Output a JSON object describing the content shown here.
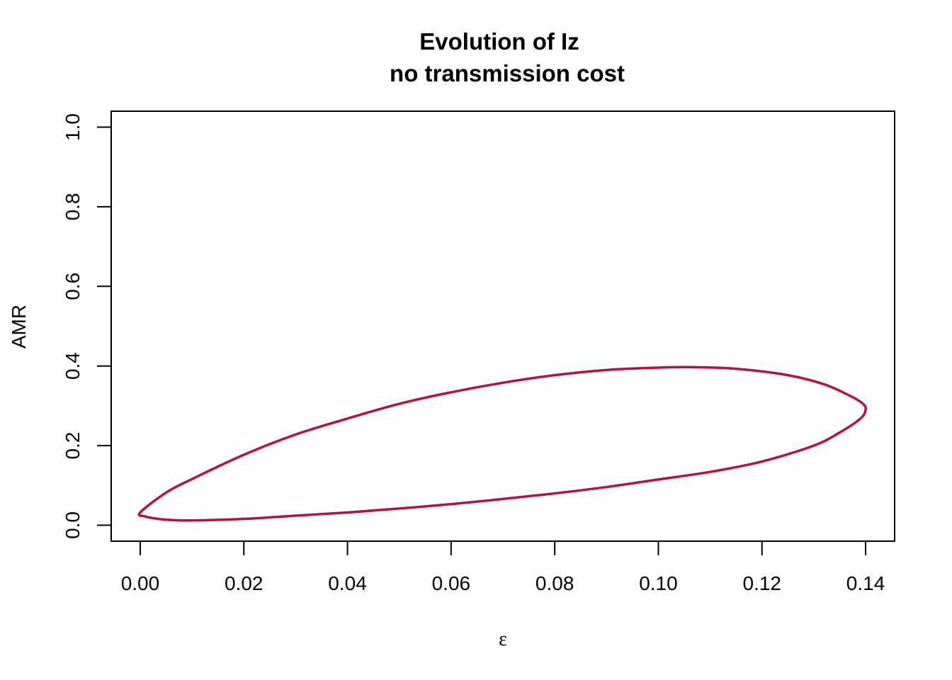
{
  "chart_data": {
    "type": "line",
    "title": "Evolution of Iz",
    "subtitle": "no transmission cost",
    "xlabel": "ε",
    "ylabel": "AMR",
    "xlim": [
      -0.0056,
      0.1456
    ],
    "ylim": [
      -0.04,
      1.04
    ],
    "xticks": [
      0.0,
      0.02,
      0.04,
      0.06,
      0.08,
      0.1,
      0.12,
      0.14
    ],
    "xtick_labels": [
      "0.00",
      "0.02",
      "0.04",
      "0.06",
      "0.08",
      "0.10",
      "0.12",
      "0.14"
    ],
    "yticks": [
      0.0,
      0.2,
      0.4,
      0.6,
      0.8,
      1.0
    ],
    "ytick_labels": [
      "0.0",
      "0.2",
      "0.4",
      "0.6",
      "0.8",
      "1.0"
    ],
    "grid": false,
    "legend": "none",
    "series": [
      {
        "color": "#b5123f",
        "closed": true,
        "x": [
          0.0,
          0.005,
          0.01,
          0.02,
          0.03,
          0.04,
          0.05,
          0.06,
          0.07,
          0.08,
          0.09,
          0.1,
          0.107,
          0.115,
          0.125,
          0.132,
          0.137,
          0.1395,
          0.14,
          0.139,
          0.135,
          0.13,
          0.12,
          0.11,
          0.1,
          0.09,
          0.08,
          0.07,
          0.06,
          0.05,
          0.04,
          0.03,
          0.02,
          0.01,
          0.005,
          0.001,
          0.0
        ],
        "y": [
          0.032,
          0.082,
          0.116,
          0.177,
          0.228,
          0.268,
          0.305,
          0.334,
          0.358,
          0.377,
          0.39,
          0.396,
          0.397,
          0.393,
          0.377,
          0.354,
          0.325,
          0.305,
          0.29,
          0.268,
          0.233,
          0.2,
          0.16,
          0.134,
          0.115,
          0.096,
          0.08,
          0.066,
          0.053,
          0.042,
          0.032,
          0.024,
          0.016,
          0.012,
          0.014,
          0.022,
          0.032
        ]
      }
    ]
  }
}
